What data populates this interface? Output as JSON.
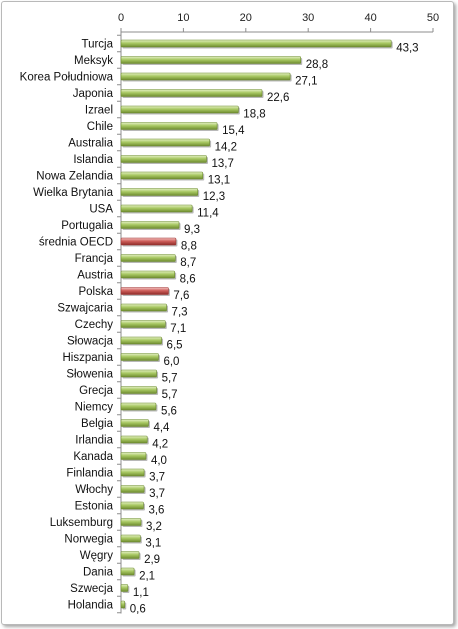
{
  "chart_data": {
    "type": "bar",
    "orientation": "horizontal",
    "title": "",
    "xlabel": "",
    "ylabel": "",
    "xlim": [
      0,
      50
    ],
    "x_ticks": [
      "0",
      "10",
      "20",
      "30",
      "40",
      "50"
    ],
    "x_axis_position": "top",
    "grid": false,
    "legend": "none",
    "colors": {
      "default": "#9bbb59",
      "highlight": "#c0504d"
    },
    "categories": [
      "Turcja",
      "Meksyk",
      "Korea Południowa",
      "Japonia",
      "Izrael",
      "Chile",
      "Australia",
      "Islandia",
      "Nowa Zelandia",
      "Wielka Brytania",
      "USA",
      "Portugalia",
      "średnia OECD",
      "Francja",
      "Austria",
      "Polska",
      "Szwajcaria",
      "Czechy",
      "Słowacja",
      "Hiszpania",
      "Słowenia",
      "Grecja",
      "Niemcy",
      "Belgia",
      "Irlandia",
      "Kanada",
      "Finlandia",
      "Włochy",
      "Estonia",
      "Luksemburg",
      "Norwegia",
      "Węgry",
      "Dania",
      "Szwecja",
      "Holandia"
    ],
    "values": [
      43.3,
      28.8,
      27.1,
      22.6,
      18.8,
      15.4,
      14.2,
      13.7,
      13.1,
      12.3,
      11.4,
      9.3,
      8.8,
      8.7,
      8.6,
      7.6,
      7.3,
      7.1,
      6.5,
      6.0,
      5.7,
      5.7,
      5.6,
      4.4,
      4.2,
      4.0,
      3.7,
      3.7,
      3.6,
      3.2,
      3.1,
      2.9,
      2.1,
      1.1,
      0.6
    ],
    "value_labels": [
      "43,3",
      "28,8",
      "27,1",
      "22,6",
      "18,8",
      "15,4",
      "14,2",
      "13,7",
      "13,1",
      "12,3",
      "11,4",
      "9,3",
      "8,8",
      "8,7",
      "8,6",
      "7,6",
      "7,3",
      "7,1",
      "6,5",
      "6,0",
      "5,7",
      "5,7",
      "5,6",
      "4,4",
      "4,2",
      "4,0",
      "3,7",
      "3,7",
      "3,6",
      "3,2",
      "3,1",
      "2,9",
      "2,1",
      "1,1",
      "0,6"
    ],
    "highlighted": [
      "średnia OECD",
      "Polska"
    ]
  }
}
